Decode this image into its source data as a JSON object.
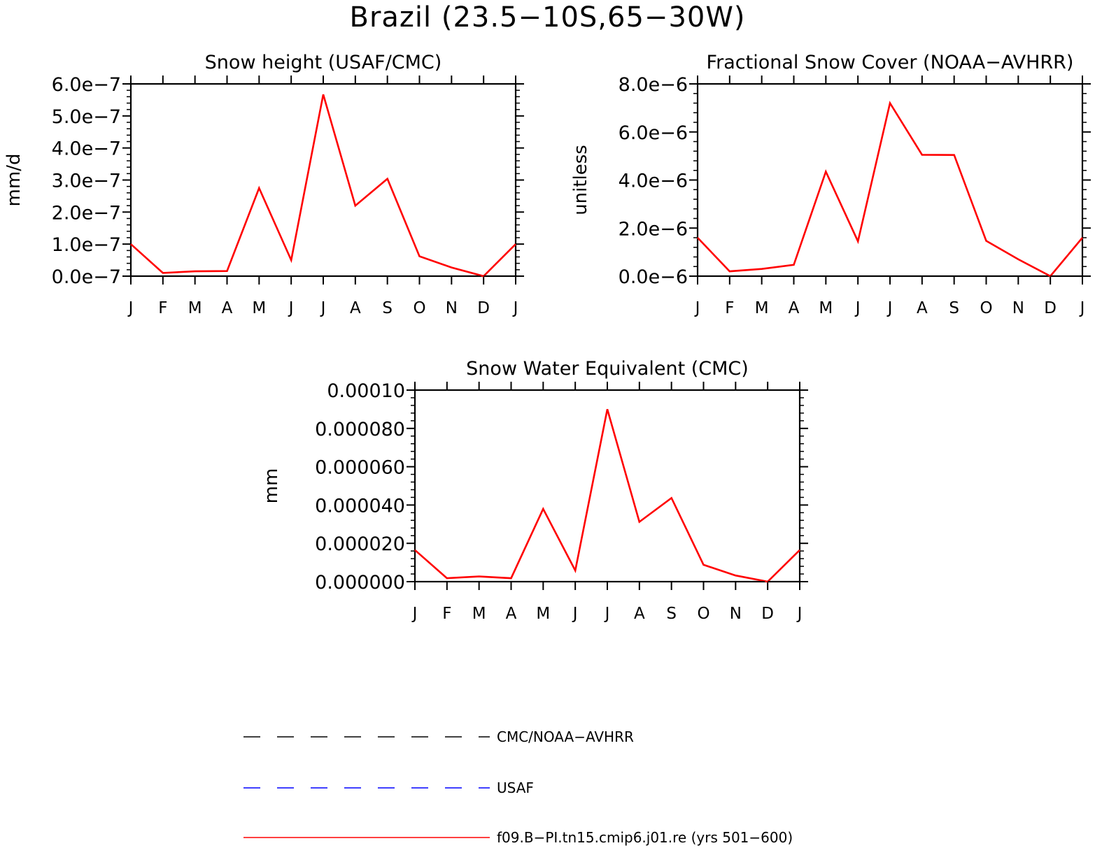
{
  "title": "Brazil (23.5−10S,65−30W)",
  "chart_data": [
    {
      "type": "line",
      "title": "Snow height (USAF/CMC)",
      "ylabel": "mm/d",
      "xlabel": "",
      "categories": [
        "J",
        "F",
        "M",
        "A",
        "M",
        "J",
        "J",
        "A",
        "S",
        "O",
        "N",
        "D",
        "J"
      ],
      "ylim": [
        0,
        6e-07
      ],
      "yticks": [
        "0.0e−7",
        "1.0e−7",
        "2.0e−7",
        "3.0e−7",
        "4.0e−7",
        "5.0e−7",
        "6.0e−7"
      ],
      "ytick_values": [
        0,
        1e-07,
        2e-07,
        3e-07,
        4e-07,
        5e-07,
        6e-07
      ],
      "series": [
        {
          "name": "f09.B−PI.tn15.cmip6.j01.re (yrs 501−600)",
          "color": "#ff0000",
          "values": [
            1e-07,
            1e-08,
            1.5e-08,
            1.6e-08,
            2.75e-07,
            5e-08,
            5.67e-07,
            2.2e-07,
            3.04e-07,
            6.2e-08,
            2.7e-08,
            0.0,
            1e-07
          ]
        },
        {
          "name": "CMC/NOAA−AVHRR",
          "color": "#000000",
          "dash": true,
          "values": [
            0,
            0,
            0,
            0,
            0,
            0,
            0,
            0,
            0,
            0,
            0,
            0,
            0
          ]
        }
      ]
    },
    {
      "type": "line",
      "title": "Fractional Snow Cover (NOAA−AVHRR)",
      "ylabel": "unitless",
      "xlabel": "",
      "categories": [
        "J",
        "F",
        "M",
        "A",
        "M",
        "J",
        "J",
        "A",
        "S",
        "O",
        "N",
        "D",
        "J"
      ],
      "ylim": [
        0,
        8e-06
      ],
      "yticks": [
        "0.0e−6",
        "2.0e−6",
        "4.0e−6",
        "6.0e−6",
        "8.0e−6"
      ],
      "ytick_values": [
        0,
        2e-06,
        4e-06,
        6e-06,
        8e-06
      ],
      "series": [
        {
          "name": "f09.B−PI.tn15.cmip6.j01.re (yrs 501−600)",
          "color": "#ff0000",
          "values": [
            1.6e-06,
            2e-07,
            3e-07,
            4.7e-07,
            4.35e-06,
            1.45e-06,
            7.2e-06,
            5.05e-06,
            5.04e-06,
            1.47e-06,
            7e-07,
            0.0,
            1.6e-06
          ]
        },
        {
          "name": "CMC/NOAA−AVHRR",
          "color": "#000000",
          "dash": true,
          "values": [
            0,
            0,
            0,
            0,
            0,
            0,
            0,
            0,
            0,
            0,
            0,
            0,
            0
          ]
        }
      ]
    },
    {
      "type": "line",
      "title": "Snow Water Equivalent (CMC)",
      "ylabel": "mm",
      "xlabel": "",
      "categories": [
        "J",
        "F",
        "M",
        "A",
        "M",
        "J",
        "J",
        "A",
        "S",
        "O",
        "N",
        "D",
        "J"
      ],
      "ylim": [
        0,
        0.0001
      ],
      "yticks": [
        "0.000000",
        "0.000020",
        "0.000040",
        "0.000060",
        "0.000080",
        "0.00010"
      ],
      "ytick_values": [
        0,
        2e-05,
        4e-05,
        6e-05,
        8e-05,
        0.0001
      ],
      "series": [
        {
          "name": "f09.B−PI.tn15.cmip6.j01.re (yrs 501−600)",
          "color": "#ff0000",
          "values": [
            1.65e-05,
            1.8e-06,
            2.7e-06,
            1.8e-06,
            3.8e-05,
            5.8e-06,
            9e-05,
            3.12e-05,
            4.37e-05,
            8.8e-06,
            3.2e-06,
            0.0,
            1.65e-05
          ]
        },
        {
          "name": "CMC/NOAA−AVHRR",
          "color": "#000000",
          "dash": true,
          "values": [
            0,
            0,
            0,
            0,
            0,
            0,
            0,
            0,
            0,
            0,
            0,
            0,
            0
          ]
        }
      ]
    }
  ],
  "legend": [
    {
      "label": "CMC/NOAA−AVHRR",
      "color": "#000000",
      "style": "dashed"
    },
    {
      "label": "USAF",
      "color": "#0000ff",
      "style": "dashed"
    },
    {
      "label": "f09.B−PI.tn15.cmip6.j01.re (yrs 501−600)",
      "color": "#ff0000",
      "style": "solid"
    }
  ]
}
